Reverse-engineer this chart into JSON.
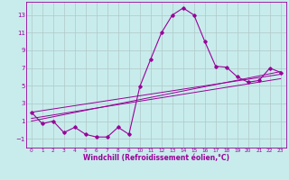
{
  "title": "",
  "xlabel": "Windchill (Refroidissement éolien,°C)",
  "ylabel": "",
  "background_color": "#c8ecec",
  "line_color": "#990099",
  "grid_color": "#b0c8c8",
  "xlim": [
    -0.5,
    23.5
  ],
  "ylim": [
    -2.0,
    14.5
  ],
  "yticks": [
    -1,
    1,
    3,
    5,
    7,
    9,
    11,
    13
  ],
  "xticks": [
    0,
    1,
    2,
    3,
    4,
    5,
    6,
    7,
    8,
    9,
    10,
    11,
    12,
    13,
    14,
    15,
    16,
    17,
    18,
    19,
    20,
    21,
    22,
    23
  ],
  "main_x": [
    0,
    1,
    2,
    3,
    4,
    5,
    6,
    7,
    8,
    9,
    10,
    11,
    12,
    13,
    14,
    15,
    16,
    17,
    18,
    19,
    20,
    21,
    22,
    23
  ],
  "main_y": [
    2.0,
    0.7,
    1.0,
    -0.3,
    0.3,
    -0.5,
    -0.8,
    -0.8,
    0.3,
    -0.5,
    4.9,
    8.0,
    11.0,
    13.0,
    13.8,
    13.0,
    10.0,
    7.2,
    7.1,
    6.0,
    5.4,
    5.6,
    7.0,
    6.5
  ],
  "line1_x": [
    0,
    23
  ],
  "line1_y": [
    2.0,
    6.3
  ],
  "line2_x": [
    0,
    23
  ],
  "line2_y": [
    1.3,
    5.8
  ],
  "line3_x": [
    0,
    23
  ],
  "line3_y": [
    1.0,
    6.6
  ],
  "xlabel_fontsize": 5.5,
  "xtick_fontsize": 4.2,
  "ytick_fontsize": 5.0
}
